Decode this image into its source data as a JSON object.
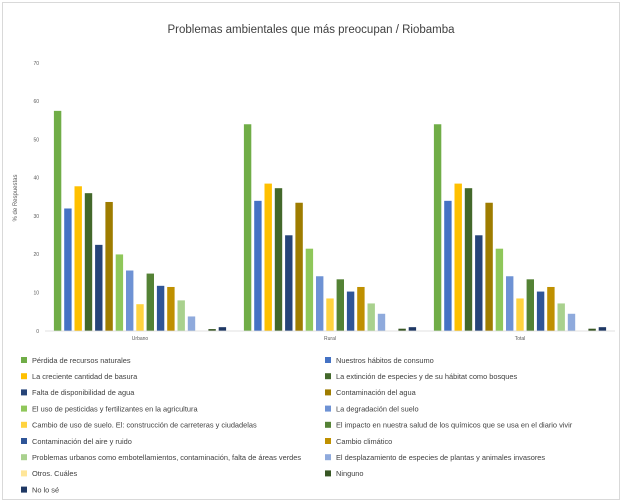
{
  "chart_data": {
    "type": "bar",
    "title": "Problemas ambientales que más preocupan / Riobamba",
    "xlabel": "",
    "ylabel": "% de Respuestas",
    "ylim": [
      0,
      70
    ],
    "yticks": [
      0,
      10,
      20,
      30,
      40,
      50,
      60,
      70
    ],
    "grid": false,
    "legend_position": "bottom",
    "categories": [
      "Urbano",
      "Rural",
      "Total"
    ],
    "series": [
      {
        "name": "Pérdida de recursos naturales",
        "color": "#70ad47",
        "values": [
          57.5,
          54.0,
          54.0
        ]
      },
      {
        "name": "Nuestros hábitos de consumo",
        "color": "#4472c4",
        "values": [
          32.0,
          34.0,
          34.0
        ]
      },
      {
        "name": "La creciente cantidad de basura",
        "color": "#ffc000",
        "values": [
          37.8,
          38.5,
          38.5
        ]
      },
      {
        "name": "La extinción de especies y de su hábitat como bosques",
        "color": "#43682b",
        "values": [
          36.0,
          37.3,
          37.3
        ]
      },
      {
        "name": "Falta de disponibilidad de agua",
        "color": "#264478",
        "values": [
          22.5,
          25.0,
          25.0
        ]
      },
      {
        "name": "Contaminación del agua",
        "color": "#9e7c00",
        "values": [
          33.7,
          33.5,
          33.5
        ]
      },
      {
        "name": "El uso de pesticidas y fertilizantes en la agricultura",
        "color": "#8fc75a",
        "values": [
          20.0,
          21.5,
          21.5
        ]
      },
      {
        "name": "La degradación del suelo",
        "color": "#6e92d4",
        "values": [
          15.8,
          14.3,
          14.3
        ]
      },
      {
        "name": "Cambio de uso de suelo. El: construcción de carreteras y ciudadelas",
        "color": "#ffd33f",
        "values": [
          7.0,
          8.5,
          8.5
        ]
      },
      {
        "name": "El impacto en nuestra salud de los químicos que se usa en el diario vivir",
        "color": "#548235",
        "values": [
          15.0,
          13.5,
          13.5
        ]
      },
      {
        "name": "Contaminación del aire y ruido",
        "color": "#2f5597",
        "values": [
          11.8,
          10.3,
          10.3
        ]
      },
      {
        "name": "Cambio climático",
        "color": "#bf9000",
        "values": [
          11.5,
          11.5,
          11.5
        ]
      },
      {
        "name": "Problemas urbanos como embotellamientos, contaminación, falta de áreas verdes",
        "color": "#a9d18e",
        "values": [
          8.0,
          7.2,
          7.2
        ]
      },
      {
        "name": "El desplazamiento de especies de plantas y animales invasores",
        "color": "#8faadc",
        "values": [
          3.8,
          4.5,
          4.5
        ]
      },
      {
        "name": "Otros. Cuáles",
        "color": "#ffe699",
        "values": [
          0.0,
          0.0,
          0.0
        ]
      },
      {
        "name": "Ninguno",
        "color": "#375623",
        "values": [
          0.5,
          0.6,
          0.6
        ]
      },
      {
        "name": "No lo sé",
        "color": "#1f3864",
        "values": [
          1.0,
          1.0,
          1.0
        ]
      }
    ]
  }
}
